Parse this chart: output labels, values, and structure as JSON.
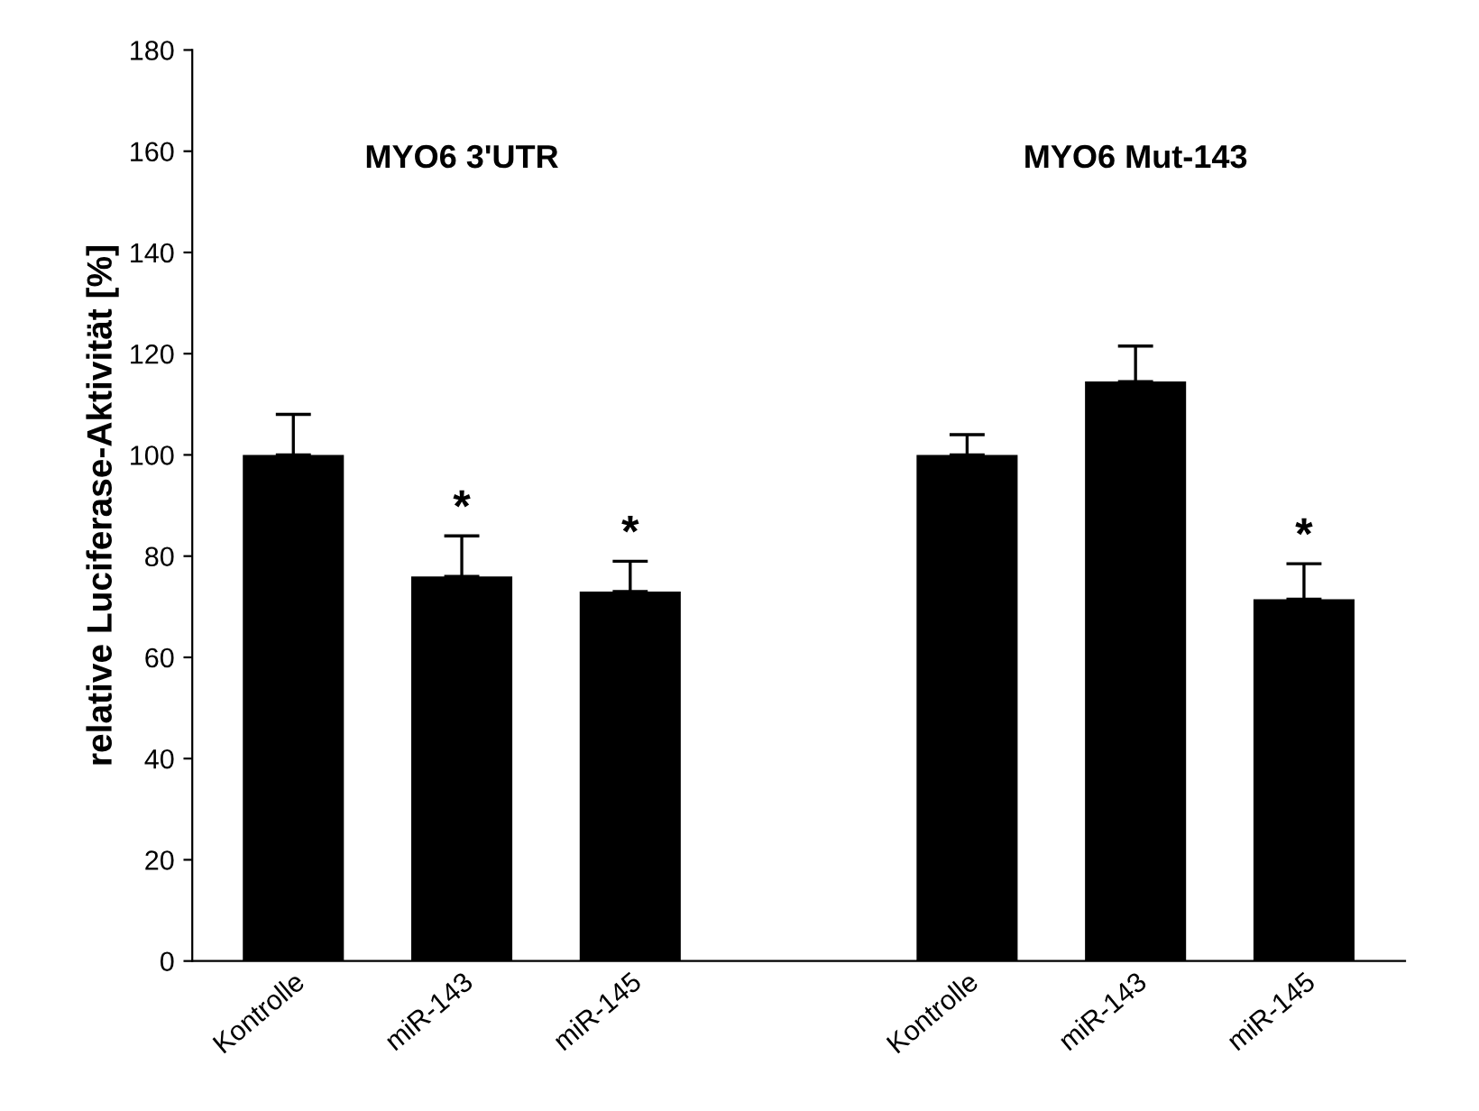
{
  "chart_data": {
    "type": "bar",
    "ylabel": "relative Luciferase-Aktivität [%]",
    "categories": [
      "Kontrolle",
      "miR-143",
      "miR-145",
      null,
      "Kontrolle",
      "miR-143",
      "miR-145"
    ],
    "values": [
      100,
      76,
      73,
      null,
      100,
      114.5,
      71.5
    ],
    "errors": [
      8,
      8,
      6,
      null,
      4,
      7,
      7
    ],
    "value_labels": [
      null,
      "*",
      "*",
      null,
      null,
      null,
      "*"
    ],
    "color": "#000000",
    "annotations": [
      "MYO6 3'UTR",
      "MYO6 Mut-143"
    ],
    "ylim": [
      0,
      180
    ],
    "yticks": [
      0,
      20,
      40,
      60,
      80,
      100,
      120,
      140,
      160,
      180
    ],
    "grid": false
  }
}
